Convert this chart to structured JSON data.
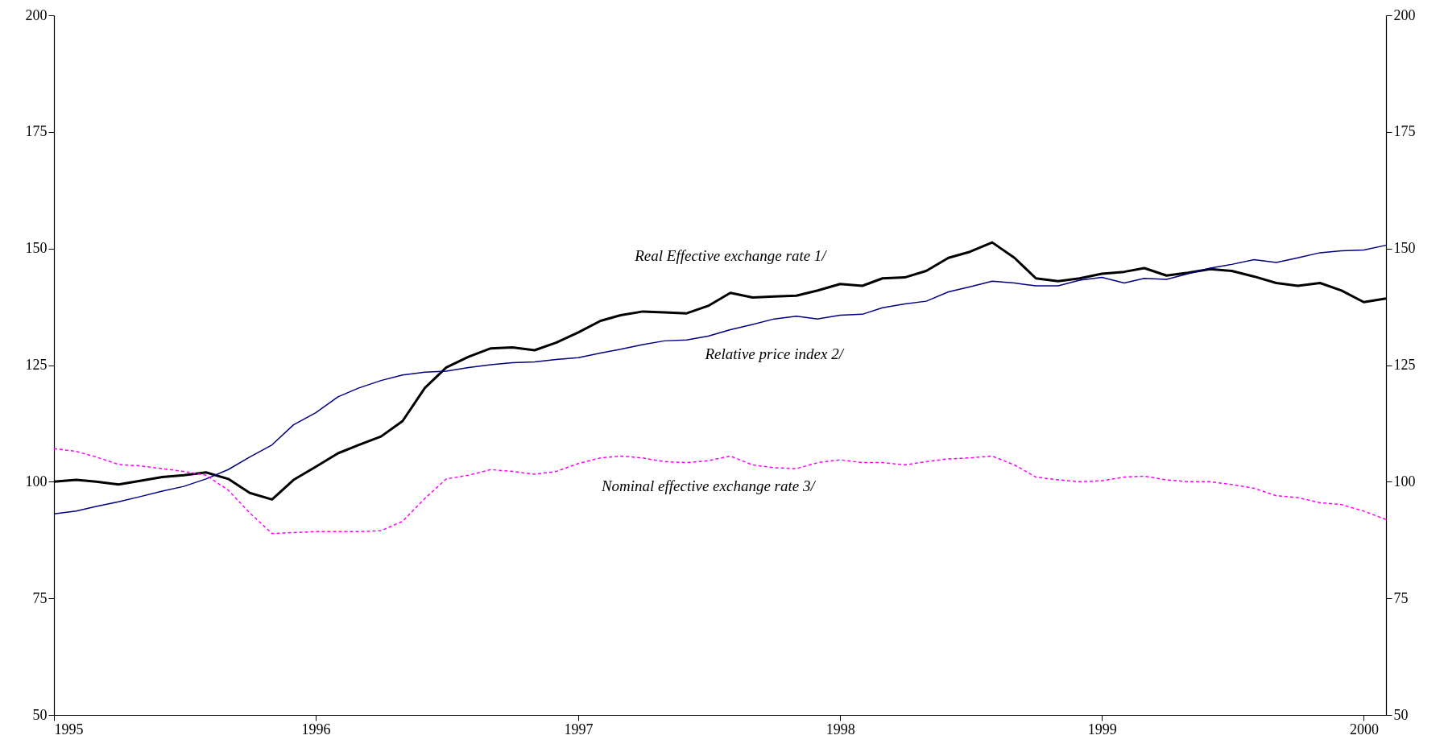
{
  "chart_data": {
    "type": "line",
    "x": [
      "1995-01",
      "1995-02",
      "1995-03",
      "1995-04",
      "1995-05",
      "1995-06",
      "1995-07",
      "1995-08",
      "1995-09",
      "1995-10",
      "1995-11",
      "1995-12",
      "1996-01",
      "1996-02",
      "1996-03",
      "1996-04",
      "1996-05",
      "1996-06",
      "1996-07",
      "1996-08",
      "1996-09",
      "1996-10",
      "1996-11",
      "1996-12",
      "1997-01",
      "1997-02",
      "1997-03",
      "1997-04",
      "1997-05",
      "1997-06",
      "1997-07",
      "1997-08",
      "1997-09",
      "1997-10",
      "1997-11",
      "1997-12",
      "1998-01",
      "1998-02",
      "1998-03",
      "1998-04",
      "1998-05",
      "1998-06",
      "1998-07",
      "1998-08",
      "1998-09",
      "1998-10",
      "1998-11",
      "1998-12",
      "1999-01",
      "1999-02",
      "1999-03",
      "1999-04",
      "1999-05",
      "1999-06",
      "1999-07",
      "1999-08",
      "1999-09",
      "1999-10",
      "1999-11",
      "1999-12",
      "2000-01",
      "2000-02"
    ],
    "series": [
      {
        "name": "Real Effective exchange rate 1/",
        "color": "#000000",
        "line_style": "solid",
        "values": [
          100,
          100.4,
          100,
          99.4,
          100.2,
          101,
          101.4,
          102,
          100.6,
          97.6,
          96.2,
          100.4,
          103.2,
          106.1,
          107.9,
          109.7,
          113,
          120.1,
          124.5,
          126.8,
          128.6,
          128.8,
          128.2,
          129.8,
          132,
          134.5,
          135.7,
          136.5,
          136.3,
          136.1,
          137.7,
          140.5,
          139.5,
          139.7,
          139.9,
          141,
          142.4,
          142,
          143.6,
          143.8,
          145.2,
          148,
          149.3,
          151.3,
          148,
          143.6,
          143,
          143.6,
          144.6,
          145,
          145.8,
          144.2,
          144.8,
          145.6,
          145.2,
          144,
          142.6,
          142,
          142.6,
          141,
          138.5,
          139.3
        ]
      },
      {
        "name": "Relative price index 2/",
        "color": "#000080",
        "line_style": "solid",
        "values": [
          93.1,
          93.7,
          94.7,
          95.7,
          96.8,
          98,
          99,
          100.6,
          102.6,
          105.3,
          107.9,
          112.2,
          114.8,
          118.2,
          120.1,
          121.7,
          122.9,
          123.5,
          123.7,
          124.5,
          125.1,
          125.5,
          125.7,
          126.2,
          126.6,
          127.6,
          128.4,
          129.4,
          130.2,
          130.4,
          131.2,
          132.6,
          133.7,
          134.9,
          135.5,
          134.9,
          135.7,
          135.9,
          137.3,
          138.1,
          138.7,
          140.7,
          141.8,
          143,
          142.6,
          142,
          142,
          143.2,
          143.8,
          142.6,
          143.6,
          143.4,
          144.6,
          145.8,
          146.6,
          147.6,
          147,
          148,
          149.1,
          149.5,
          149.7,
          150.7
        ]
      },
      {
        "name": "Nominal effective exchange rate 3/",
        "color": "#ff00ff",
        "line_style": "dashed",
        "values": [
          107.1,
          106.5,
          105.3,
          103.7,
          103.4,
          102.8,
          102.2,
          101.4,
          98.2,
          93.3,
          88.9,
          89.1,
          89.3,
          89.3,
          89.3,
          89.5,
          91.5,
          96.4,
          100.6,
          101.4,
          102.6,
          102.2,
          101.6,
          102.2,
          103.9,
          105.1,
          105.5,
          105.1,
          104.3,
          104.1,
          104.5,
          105.5,
          103.6,
          103,
          102.8,
          104.1,
          104.7,
          104.1,
          104.1,
          103.6,
          104.3,
          104.9,
          105.1,
          105.5,
          103.6,
          101,
          100.4,
          100,
          100.2,
          101,
          101.2,
          100.4,
          100,
          100,
          99.4,
          98.6,
          97,
          96.6,
          95.5,
          95.1,
          93.7,
          91.9
        ]
      }
    ],
    "xlim": [
      "1995-01",
      "2000-02"
    ],
    "xticks": [
      {
        "value": "1995-01",
        "label": "1995"
      },
      {
        "value": "1996-01",
        "label": "1996"
      },
      {
        "value": "1997-01",
        "label": "1997"
      },
      {
        "value": "1998-01",
        "label": "1998"
      },
      {
        "value": "1999-01",
        "label": "1999"
      },
      {
        "value": "2000-01",
        "label": "2000"
      }
    ],
    "ylim": [
      50,
      200
    ],
    "yticks": [
      50,
      75,
      100,
      125,
      150,
      175,
      200
    ],
    "y2lim": [
      50,
      200
    ],
    "y2ticks": [
      50,
      75,
      100,
      125,
      150,
      175,
      200
    ],
    "grid": false
  }
}
